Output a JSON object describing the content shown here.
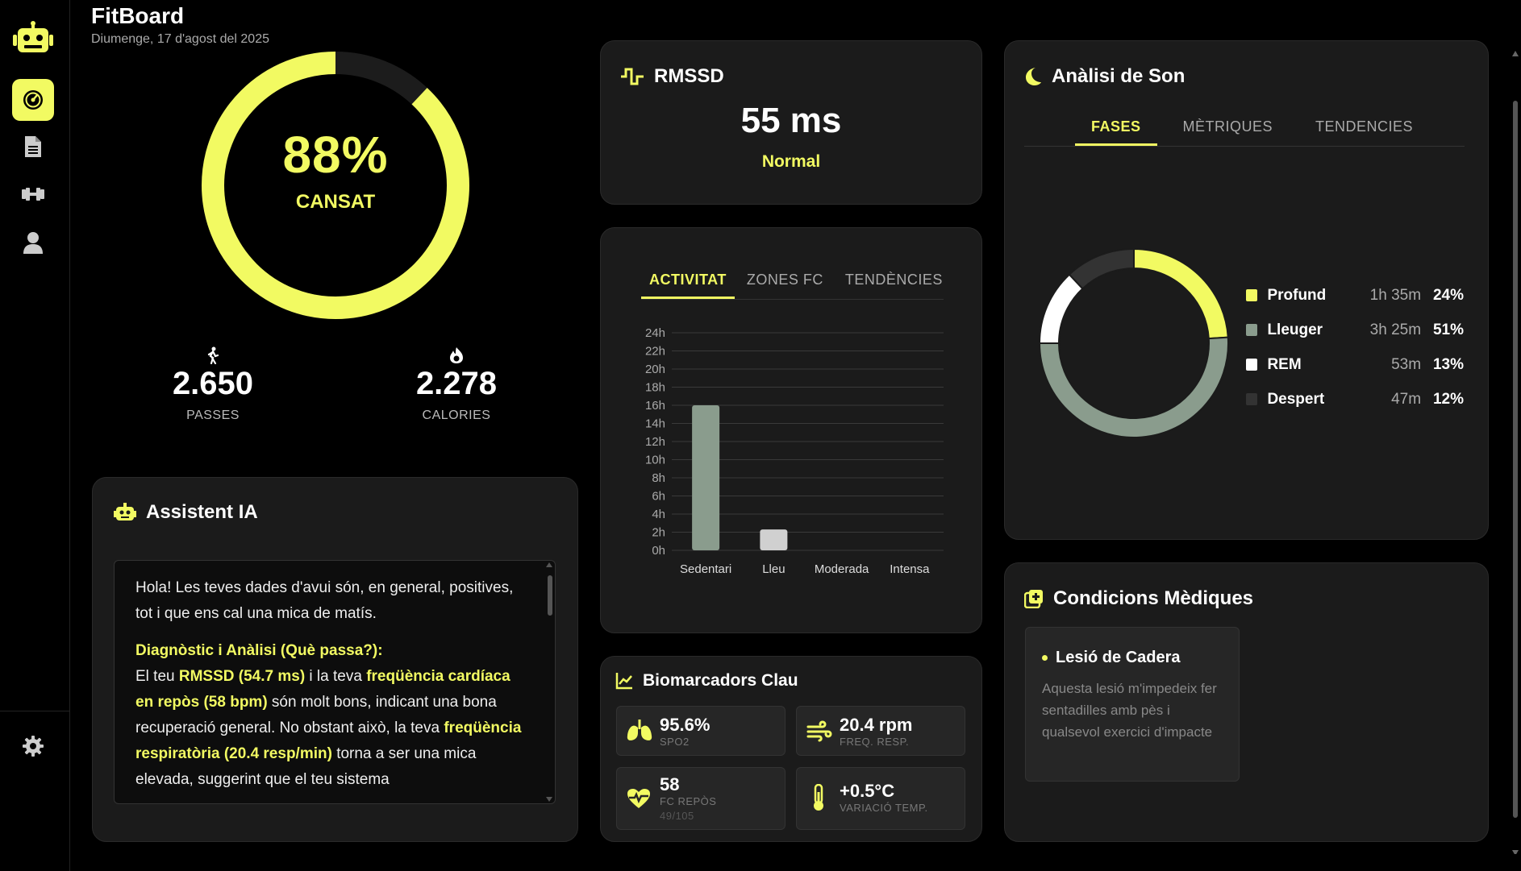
{
  "app": {
    "title": "FitBoard",
    "date": "Diumenge, 17 d'agost del 2025"
  },
  "sidebar": {
    "items": [
      {
        "icon": "robot-icon"
      },
      {
        "icon": "dashboard-icon",
        "active": true
      },
      {
        "icon": "document-icon"
      },
      {
        "icon": "dumbbell-icon"
      },
      {
        "icon": "user-icon"
      },
      {
        "icon": "gear-icon"
      }
    ]
  },
  "fatigue": {
    "percent": "88%",
    "value": 0.88,
    "label": "CANSAT"
  },
  "stats": {
    "steps": {
      "value": "2.650",
      "label": "PASSES",
      "icon": "walking-icon"
    },
    "calories": {
      "value": "2.278",
      "label": "CALORIES",
      "icon": "flame-icon"
    }
  },
  "assistant": {
    "title": "Assistent IA",
    "intro": "Hola! Les teves dades d'avui són, en general, positives, tot i que ens cal una mica de matís.",
    "heading": "Diagnòstic i Anàlisi (Què passa?):",
    "p2_a": "El teu ",
    "p2_b": "RMSSD (54.7 ms)",
    "p2_c": " i la teva ",
    "p2_d": "freqüència cardíaca en repòs (58 bpm)",
    "p2_e": " són molt bons, indicant una bona recuperació general. No obstant això, la teva ",
    "p2_f": "freqüència respiratòria (20.4 resp/min)",
    "p2_g": " torna a ser una mica elevada, suggerint que el teu sistema"
  },
  "rmssd": {
    "title": "RMSSD",
    "value": "55 ms",
    "status": "Normal"
  },
  "activity": {
    "tabs": [
      "ACTIVITAT",
      "ZONES FC",
      "TENDÈNCIES"
    ],
    "active_tab": 0
  },
  "chart_data": {
    "type": "bar",
    "categories": [
      "Sedentari",
      "Lleu",
      "Moderada",
      "Intensa"
    ],
    "values": [
      16,
      2.3,
      0,
      0
    ],
    "colors": [
      "#8a9c8d",
      "#d0d0d0",
      "#8a9c8d",
      "#8a9c8d"
    ],
    "ylim": [
      0,
      24
    ],
    "yticks": [
      "0h",
      "2h",
      "4h",
      "6h",
      "8h",
      "10h",
      "12h",
      "14h",
      "16h",
      "18h",
      "20h",
      "22h",
      "24h"
    ],
    "grid": true
  },
  "sleep": {
    "title": "Anàlisi de Son",
    "tabs": [
      "FASES",
      "MÈTRIQUES",
      "TENDENCIES"
    ],
    "active_tab": 0,
    "phases": [
      {
        "name": "Profund",
        "time": "1h 35m",
        "pct": "24%",
        "value": 24,
        "color": "#f2fa62"
      },
      {
        "name": "Lleuger",
        "time": "3h 25m",
        "pct": "51%",
        "value": 51,
        "color": "#8a9c8d"
      },
      {
        "name": "REM",
        "time": "53m",
        "pct": "13%",
        "value": 13,
        "color": "#ffffff"
      },
      {
        "name": "Despert",
        "time": "47m",
        "pct": "12%",
        "value": 12,
        "color": "#333333"
      }
    ]
  },
  "biomarkers": {
    "title": "Biomarcadors Clau",
    "items": [
      {
        "value": "95.6%",
        "label": "SPO2",
        "icon": "lungs-icon"
      },
      {
        "value": "20.4 rpm",
        "label": "FREQ. RESP.",
        "icon": "wind-icon"
      },
      {
        "value": "58",
        "label": "FC REPÒS",
        "sub": "49/105",
        "icon": "heart-pulse-icon"
      },
      {
        "value": "+0.5°C",
        "label": "VARIACIÓ TEMP.",
        "icon": "thermometer-icon"
      }
    ]
  },
  "medical": {
    "title": "Condicions Mèdiques",
    "items": [
      {
        "title": "Lesió de Cadera",
        "desc": "Aquesta lesió m'impedeix fer sentadilles amb pès i qualsevol exercici d'impacte"
      }
    ]
  }
}
